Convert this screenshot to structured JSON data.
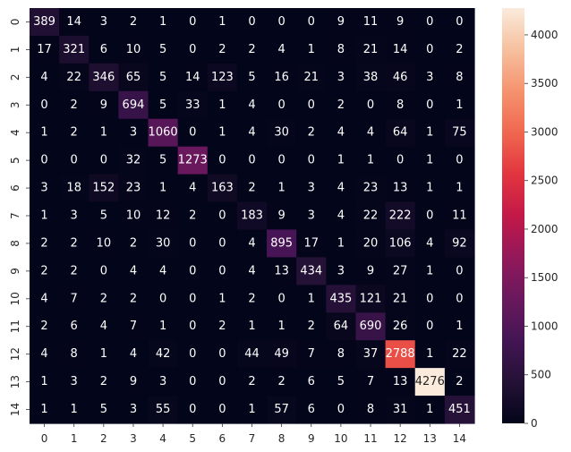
{
  "chart_data": {
    "type": "heatmap",
    "title": "",
    "xlabel": "",
    "ylabel": "",
    "x_labels": [
      "0",
      "1",
      "2",
      "3",
      "4",
      "5",
      "6",
      "7",
      "8",
      "9",
      "10",
      "11",
      "12",
      "13",
      "14"
    ],
    "y_labels": [
      "0",
      "1",
      "2",
      "3",
      "4",
      "5",
      "6",
      "7",
      "8",
      "9",
      "10",
      "11",
      "12",
      "13",
      "14"
    ],
    "values": [
      [
        389,
        14,
        3,
        2,
        1,
        0,
        1,
        0,
        0,
        0,
        9,
        11,
        9,
        0,
        0
      ],
      [
        17,
        321,
        6,
        10,
        5,
        0,
        2,
        2,
        4,
        1,
        8,
        21,
        14,
        0,
        2
      ],
      [
        4,
        22,
        346,
        65,
        5,
        14,
        123,
        5,
        16,
        21,
        3,
        38,
        46,
        3,
        8
      ],
      [
        0,
        2,
        9,
        694,
        5,
        33,
        1,
        4,
        0,
        0,
        2,
        0,
        8,
        0,
        1
      ],
      [
        1,
        2,
        1,
        3,
        1060,
        0,
        1,
        4,
        30,
        2,
        4,
        4,
        64,
        1,
        75
      ],
      [
        0,
        0,
        0,
        32,
        5,
        1273,
        0,
        0,
        0,
        0,
        1,
        1,
        0,
        1,
        0
      ],
      [
        3,
        18,
        152,
        23,
        1,
        4,
        163,
        2,
        1,
        3,
        4,
        23,
        13,
        1,
        1
      ],
      [
        1,
        3,
        5,
        10,
        12,
        2,
        0,
        183,
        9,
        3,
        4,
        22,
        222,
        0,
        11
      ],
      [
        2,
        2,
        10,
        2,
        30,
        0,
        0,
        4,
        895,
        17,
        1,
        20,
        106,
        4,
        92
      ],
      [
        2,
        2,
        0,
        4,
        4,
        0,
        0,
        4,
        13,
        434,
        3,
        9,
        27,
        1,
        0
      ],
      [
        4,
        7,
        2,
        2,
        0,
        0,
        1,
        2,
        0,
        1,
        435,
        121,
        21,
        0,
        0
      ],
      [
        2,
        6,
        4,
        7,
        1,
        0,
        2,
        1,
        1,
        2,
        64,
        690,
        26,
        0,
        1
      ],
      [
        4,
        8,
        1,
        4,
        42,
        0,
        0,
        44,
        49,
        7,
        8,
        37,
        2788,
        1,
        22
      ],
      [
        1,
        3,
        2,
        9,
        3,
        0,
        0,
        2,
        2,
        6,
        5,
        7,
        13,
        4276,
        2
      ],
      [
        1,
        1,
        5,
        3,
        55,
        0,
        0,
        1,
        57,
        6,
        0,
        8,
        31,
        1,
        451
      ]
    ],
    "value_range": [
      0,
      4276
    ],
    "colormap": "rocket",
    "colorbar": {
      "ticks": [
        0,
        500,
        1000,
        1500,
        2000,
        2500,
        3000,
        3500,
        4000
      ],
      "tick_labels": [
        "0",
        "500",
        "1000",
        "1500",
        "2000",
        "2500",
        "3000",
        "3500",
        "4000"
      ],
      "placement": "right"
    },
    "annotations": true,
    "grid": false
  }
}
